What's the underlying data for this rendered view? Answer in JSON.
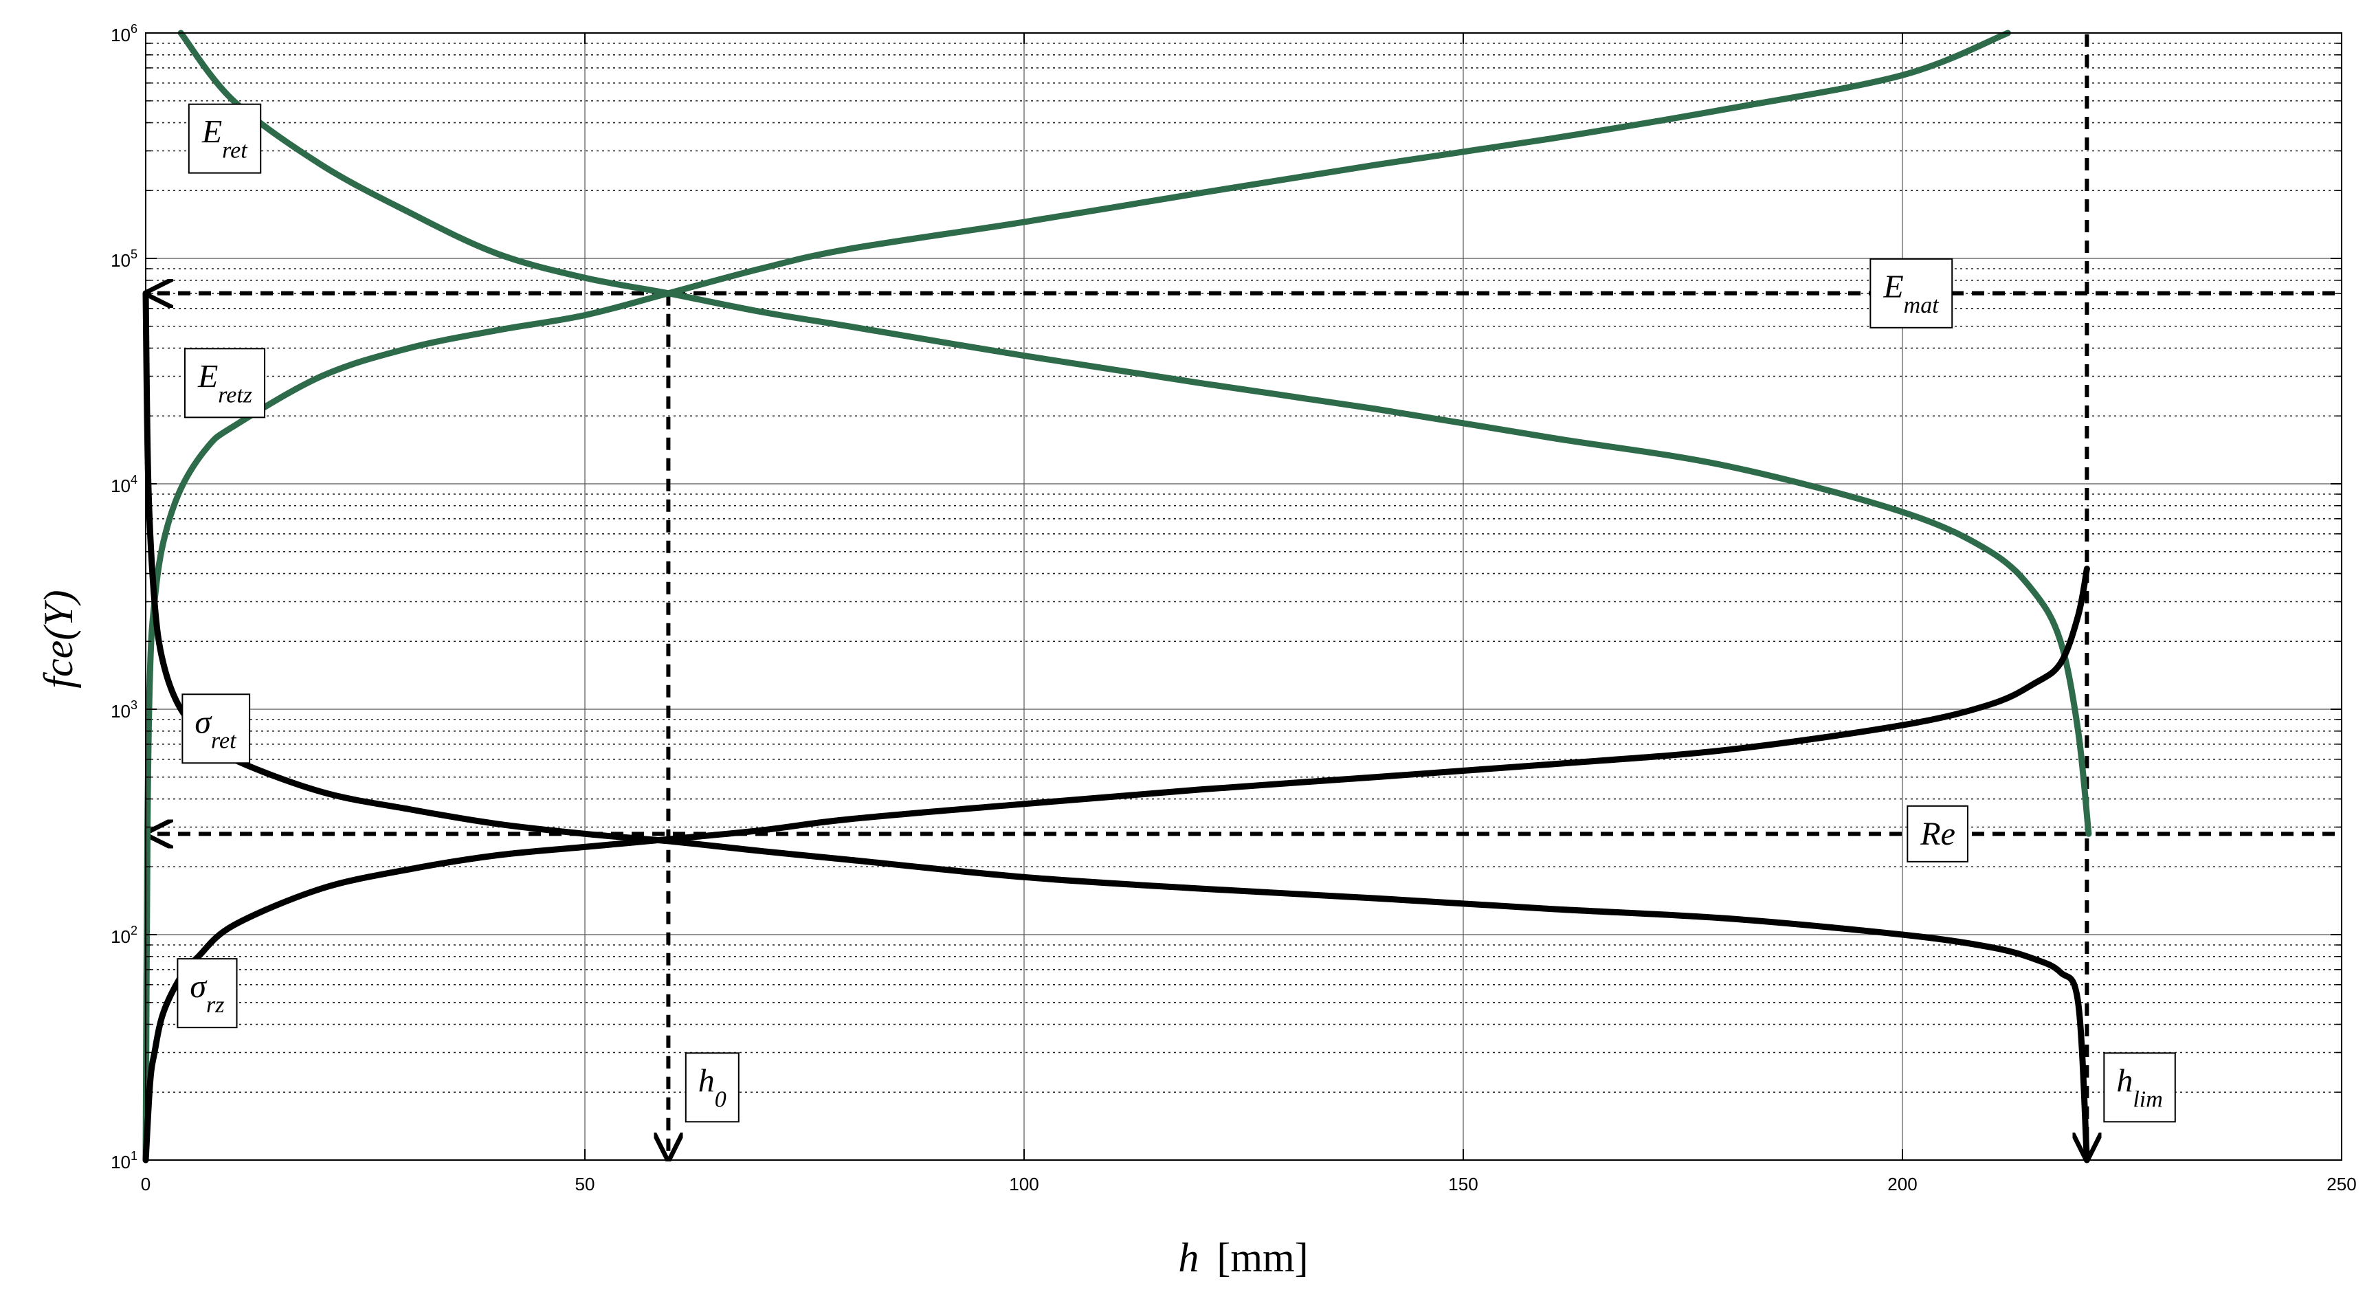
{
  "chart_data": {
    "type": "line",
    "title": "",
    "xlabel": {
      "symbol": "h",
      "unit": "[mm]"
    },
    "ylabel": "fce(Y)",
    "xlim": [
      0,
      250
    ],
    "ylim": [
      10,
      1000000
    ],
    "yscale": "log",
    "xticks": [
      "0",
      "50",
      "100",
      "150",
      "200",
      "250"
    ],
    "yticks": [
      {
        "base": "10",
        "exp": "1"
      },
      {
        "base": "10",
        "exp": "2"
      },
      {
        "base": "10",
        "exp": "3"
      },
      {
        "base": "10",
        "exp": "4"
      },
      {
        "base": "10",
        "exp": "5"
      },
      {
        "base": "10",
        "exp": "6"
      }
    ],
    "grid": true,
    "colors": {
      "green": "#2e6b4a",
      "black": "#000000"
    },
    "series": [
      {
        "color": "#2e6b4a",
        "x": [
          4,
          10,
          20,
          30,
          40,
          50,
          59.5,
          70,
          80,
          100,
          120,
          140,
          160,
          180,
          200,
          210,
          215,
          218,
          220,
          221.2
        ],
        "y": [
          1000000,
          500000,
          260000,
          160000,
          105000,
          82000,
          70000,
          58000,
          50000,
          37000,
          28000,
          21500,
          16000,
          12000,
          7500,
          5000,
          3300,
          2000,
          800,
          280
        ]
      },
      {
        "color": "#2e6b4a",
        "x": [
          0,
          0.2,
          0.5,
          1,
          2,
          4,
          7,
          10,
          20,
          30,
          40,
          50,
          59.5,
          70,
          80,
          100,
          120,
          140,
          160,
          180,
          200,
          212
        ],
        "y": [
          10,
          300,
          1500,
          3000,
          5500,
          9500,
          14500,
          18000,
          30000,
          40000,
          48000,
          56000,
          70000,
          90000,
          110000,
          145000,
          195000,
          260000,
          340000,
          460000,
          650000,
          1000000
        ]
      },
      {
        "color": "#000000",
        "x": [
          0,
          0.3,
          1,
          2,
          4,
          7,
          10,
          20,
          30,
          40,
          50,
          59.5,
          70,
          80,
          100,
          120,
          140,
          160,
          180,
          200,
          210,
          215,
          218,
          220,
          221
        ],
        "y": [
          70000,
          10000,
          3000,
          1600,
          1000,
          750,
          600,
          430,
          360,
          310,
          280,
          260,
          235,
          215,
          180,
          160,
          145,
          130,
          118,
          100,
          88,
          78,
          68,
          50,
          10
        ]
      },
      {
        "color": "#000000",
        "x": [
          0,
          0.5,
          1,
          2,
          4,
          6,
          10,
          20,
          30,
          40,
          50,
          59.5,
          70,
          80,
          100,
          120,
          140,
          160,
          180,
          200,
          210,
          215,
          218,
          220,
          221
        ],
        "y": [
          10,
          22,
          30,
          45,
          65,
          80,
          110,
          160,
          195,
          225,
          245,
          265,
          290,
          325,
          380,
          440,
          500,
          570,
          660,
          850,
          1050,
          1300,
          1600,
          2600,
          4200
        ]
      }
    ],
    "reference_lines": {
      "E_mat_y": 70000,
      "Re_y": 280,
      "h0_x": 59.5,
      "hlim_x": 221
    },
    "annotations": [
      {
        "id": "E_ret",
        "main": "E",
        "sub": "ret",
        "x": 9,
        "y": 340000
      },
      {
        "id": "E_mat",
        "main": "E",
        "sub": "mat",
        "x": 201,
        "y": 70000
      },
      {
        "id": "E_retz",
        "main": "E",
        "sub": "retz",
        "x": 9,
        "y": 28000
      },
      {
        "id": "sigma_ret",
        "main": "σ",
        "sub": "ret",
        "x": 8,
        "y": 820
      },
      {
        "id": "Re",
        "main": "Re",
        "sub": "",
        "x": 204,
        "y": 280
      },
      {
        "id": "sigma_rz",
        "main": "σ",
        "sub": "rz",
        "x": 7,
        "y": 55
      },
      {
        "id": "h0",
        "main": "h",
        "sub": "0",
        "x": 64.5,
        "y": 21
      },
      {
        "id": "hlim",
        "main": "h",
        "sub": "lim",
        "x": 227,
        "y": 21
      }
    ]
  }
}
